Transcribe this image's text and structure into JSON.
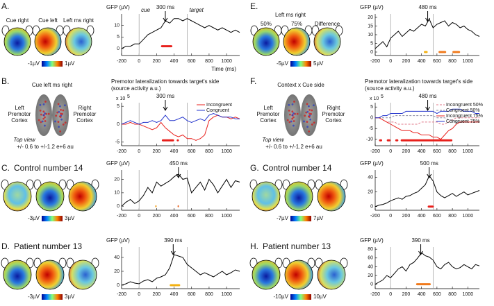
{
  "panels": [
    {
      "letter": "A.",
      "maps": [
        "Cue right",
        "Cue left",
        "Left ms right"
      ],
      "colorbar": [
        "-1µV",
        "1µV"
      ]
    },
    {
      "letter": "B.",
      "heading": "Cue left ms right",
      "brain_left": [
        "Left",
        "Premotor",
        "Cortex"
      ],
      "brain_right": [
        "Right",
        "Premotor",
        "Cortex"
      ],
      "view": "Top view",
      "scale": "+/- 0.6 to +/-1.2 e+6 au"
    },
    {
      "letter": "C.",
      "heading": "Control number 14",
      "colorbar": [
        "-3µV",
        "3µV"
      ]
    },
    {
      "letter": "D.",
      "heading": "Patient number 13",
      "colorbar": [
        "-3µV",
        "3µV"
      ]
    },
    {
      "letter": "E.",
      "heading": "Left ms right",
      "maps": [
        "50%",
        "75%",
        "Difference"
      ],
      "colorbar": [
        "-5µV",
        "5µV"
      ]
    },
    {
      "letter": "F.",
      "heading": "Context x Cue side",
      "brain_left": [
        "Left",
        "Premotor",
        "Cortex"
      ],
      "brain_right": [
        "Right",
        "Premotor",
        "Cortex"
      ],
      "view": "Top view",
      "scale": "+/- 0.6 to +/-1.2 e+6 au"
    },
    {
      "letter": "G.",
      "heading": "Control number 14",
      "colorbar": [
        "-7µV",
        "7µV"
      ]
    },
    {
      "letter": "H.",
      "heading": "Patient number 13",
      "colorbar": [
        "-10µV",
        "10µV"
      ]
    }
  ],
  "chart_data": [
    {
      "type": "line",
      "title": "GFP (µV)",
      "xlabel": "Time (ms)",
      "x": [
        -200,
        -150,
        -100,
        -50,
        0,
        50,
        100,
        150,
        200,
        250,
        300,
        350,
        400,
        450,
        500,
        550,
        600,
        650,
        700,
        750,
        800,
        850,
        900,
        950,
        1000,
        1050,
        1100,
        1150
      ],
      "series": [
        {
          "color": "#000000",
          "values": [
            0,
            1,
            1,
            2,
            2,
            4,
            6,
            7,
            8,
            9,
            12,
            11,
            13,
            13,
            12,
            13,
            12,
            11,
            10,
            9,
            10,
            9,
            8,
            9,
            8,
            7,
            8,
            7
          ]
        }
      ],
      "xlim": [
        -200,
        1150
      ],
      "xticks": [
        -200,
        0,
        200,
        400,
        600,
        800,
        1000
      ],
      "ylim": [
        -3,
        15
      ],
      "yticks": [
        0,
        5,
        10
      ],
      "events": [
        {
          "x": 0,
          "label": "cue"
        },
        {
          "x": 550,
          "label": "target"
        }
      ],
      "annotation": {
        "x": 300,
        "label": "300 ms"
      },
      "sig_y": 1,
      "sig_bars": [
        {
          "color": "#e8201c",
          "from": 250,
          "to": 380
        }
      ]
    },
    {
      "type": "line",
      "title": "Premotor lateralization towards target's side",
      "subtitle": "(source activity a.u.)",
      "y_scale_label": "x 10",
      "y_scale_exponent": "5",
      "x": [
        -200,
        -150,
        -100,
        -50,
        0,
        50,
        100,
        150,
        200,
        250,
        300,
        350,
        400,
        450,
        500,
        550,
        600,
        650,
        700,
        750,
        800,
        850,
        900,
        950,
        1000,
        1050,
        1100,
        1150
      ],
      "series": [
        {
          "name": "Incongruent",
          "color": "#e8201c",
          "values": [
            0,
            0,
            0.5,
            0,
            0,
            -0.5,
            -1,
            -1.5,
            -1,
            0.5,
            -1,
            -2,
            -3,
            -3.5,
            -3,
            -4,
            -4,
            -4.5,
            -4,
            -3,
            1,
            2,
            2.5,
            2,
            2,
            1.5,
            2,
            1.5
          ]
        },
        {
          "name": "Congruent",
          "color": "#2233cc",
          "values": [
            0,
            0.5,
            1,
            0.5,
            0,
            0.5,
            0.5,
            1,
            0.5,
            1,
            2.5,
            1,
            1,
            1.5,
            2,
            1,
            0.5,
            1,
            1.5,
            1,
            2.5,
            3,
            2.5,
            2,
            2,
            2,
            1.5,
            1.5
          ]
        }
      ],
      "legend": "upper right",
      "xlim": [
        -200,
        1150
      ],
      "xticks": [
        -200,
        0,
        200,
        400,
        600,
        800,
        1000
      ],
      "ylim": [
        -6,
        6
      ],
      "yticks": [
        5,
        0,
        -5
      ],
      "events": [
        {
          "x": 0
        },
        {
          "x": 550
        }
      ],
      "annotation": {
        "x": 300,
        "label": "300 ms"
      },
      "sig_y": -4.5,
      "sig_bars": [
        {
          "color": "#e8201c",
          "from": 260,
          "to": 400
        },
        {
          "color": "#e8201c",
          "from": 430,
          "to": 455
        }
      ]
    },
    {
      "type": "line",
      "title": "GFP (µV)",
      "x": [
        -200,
        -150,
        -100,
        -50,
        0,
        50,
        100,
        150,
        200,
        250,
        300,
        350,
        400,
        450,
        500,
        550,
        600,
        650,
        700,
        750,
        800,
        850,
        900,
        950,
        1000,
        1050,
        1100,
        1150
      ],
      "series": [
        {
          "color": "#000000",
          "values": [
            0,
            3,
            5,
            2,
            4,
            8,
            14,
            10,
            18,
            15,
            17,
            19,
            22,
            24,
            20,
            21,
            10,
            14,
            18,
            12,
            20,
            16,
            10,
            15,
            20,
            14,
            19,
            18
          ]
        }
      ],
      "xlim": [
        -200,
        1150
      ],
      "xticks": [
        -200,
        0,
        200,
        400,
        600,
        800,
        1000
      ],
      "ylim": [
        -3,
        27
      ],
      "yticks": [
        0,
        10,
        20
      ],
      "events": [
        {
          "x": 0
        },
        {
          "x": 550
        }
      ],
      "annotation": {
        "x": 450,
        "label": "450 ms"
      },
      "sig_y": 0,
      "sig_bars": [
        {
          "color": "#f39c12",
          "from": 185,
          "to": 200
        },
        {
          "color": "#e8601c",
          "from": 440,
          "to": 455
        }
      ]
    },
    {
      "type": "line",
      "title": "GFP (µV)",
      "x": [
        -200,
        -150,
        -100,
        -50,
        0,
        50,
        100,
        150,
        200,
        250,
        300,
        350,
        400,
        450,
        500,
        550,
        600,
        650,
        700,
        750,
        800,
        850,
        900,
        950,
        1000,
        1050,
        1100,
        1150
      ],
      "series": [
        {
          "color": "#000000",
          "values": [
            0,
            2,
            5,
            3,
            2,
            6,
            8,
            5,
            10,
            12,
            15,
            25,
            44,
            42,
            40,
            30,
            25,
            20,
            15,
            18,
            15,
            12,
            16,
            20,
            15,
            18,
            22,
            20
          ]
        }
      ],
      "xlim": [
        -200,
        1150
      ],
      "xticks": [
        -200,
        0,
        200,
        400,
        600,
        800,
        1000
      ],
      "ylim": [
        -5,
        55
      ],
      "yticks": [
        0,
        20,
        40
      ],
      "events": [
        {
          "x": 0
        },
        {
          "x": 550
        }
      ],
      "annotation": {
        "x": 390,
        "label": "390 ms"
      },
      "sig_y": 0,
      "sig_bars": [
        {
          "color": "#f3b112",
          "from": 350,
          "to": 470
        }
      ]
    },
    {
      "type": "line",
      "title": "GFP (µV)",
      "x": [
        -200,
        -150,
        -100,
        -50,
        0,
        50,
        100,
        150,
        200,
        250,
        300,
        350,
        400,
        450,
        500,
        550,
        600,
        650,
        700,
        750,
        800,
        850,
        900,
        950,
        1000,
        1050,
        1100,
        1150
      ],
      "series": [
        {
          "color": "#000000",
          "values": [
            2,
            4,
            6,
            3,
            8,
            10,
            12,
            9,
            11,
            13,
            12,
            14,
            16,
            15,
            19,
            14,
            16,
            17,
            18,
            15,
            17,
            16,
            14,
            15,
            13,
            12,
            10,
            9
          ]
        }
      ],
      "xlim": [
        -200,
        1150
      ],
      "xticks": [
        -200,
        0,
        200,
        400,
        600,
        800,
        1000
      ],
      "ylim": [
        -2,
        22
      ],
      "yticks": [
        0,
        5,
        10,
        15,
        20
      ],
      "events": [
        {
          "x": 0
        },
        {
          "x": 550
        }
      ],
      "annotation": {
        "x": 480,
        "label": "480 ms"
      },
      "sig_y": 0,
      "sig_bars": [
        {
          "color": "#f3b112",
          "from": 430,
          "to": 480
        },
        {
          "color": "#f07a1c",
          "from": 620,
          "to": 720
        },
        {
          "color": "#f07a1c",
          "from": 800,
          "to": 900
        }
      ]
    },
    {
      "type": "line",
      "title": "Premotor lateralization towards target's side",
      "subtitle": "(source activity a.u.)",
      "y_scale_label": "x 10",
      "y_scale_exponent": "5",
      "x": [
        -200,
        -150,
        -100,
        -50,
        0,
        50,
        100,
        150,
        200,
        250,
        300,
        350,
        400,
        450,
        500,
        550,
        600,
        650,
        700,
        750,
        800,
        850,
        900,
        950,
        1000,
        1050,
        1100,
        1150
      ],
      "series": [
        {
          "name": "Incongruent 50%",
          "color": "#e07a8a",
          "dash": true,
          "values": [
            0,
            0,
            -1,
            -2,
            -2,
            -2,
            -3,
            -3,
            -3,
            -3,
            -3,
            -3,
            -2,
            -2,
            -2,
            -2,
            -2,
            -3,
            -3,
            -2,
            -1,
            0,
            0,
            0,
            0,
            0,
            0,
            0
          ]
        },
        {
          "name": "Congruent 50%",
          "color": "#8a8aa0",
          "dash": true,
          "values": [
            0,
            0,
            0,
            0,
            0,
            1,
            1,
            1,
            1,
            1,
            1,
            1,
            1,
            1,
            1,
            1,
            0,
            0,
            0,
            -1,
            -1,
            -2,
            -2,
            -2,
            -2,
            -2,
            -2,
            -2
          ]
        },
        {
          "name": "Incongruent 75%",
          "color": "#e8201c",
          "dash": false,
          "values": [
            0,
            0,
            -1,
            -2,
            -3,
            -4,
            -5,
            -6,
            -6,
            -6,
            -7,
            -7,
            -8,
            -8,
            -8,
            -9,
            -9,
            -10,
            -8,
            -6,
            -5,
            -3,
            -2,
            -2,
            -2,
            -2,
            -2,
            -2
          ]
        },
        {
          "name": "Congruent 75%",
          "color": "#2233cc",
          "dash": false,
          "values": [
            0,
            0,
            1,
            1,
            2,
            2,
            2,
            2,
            3,
            3,
            3,
            3,
            3,
            3,
            3,
            3,
            2,
            3,
            3,
            3,
            4,
            4,
            4,
            3,
            3,
            3,
            2,
            2
          ]
        }
      ],
      "legend": "upper right",
      "xlim": [
        -200,
        1150
      ],
      "xticks": [
        -200,
        0,
        200,
        400,
        600,
        800,
        1000
      ],
      "ylim": [
        -13,
        7
      ],
      "yticks": [
        5,
        0,
        -5,
        -10
      ],
      "events": [
        {
          "x": 0
        },
        {
          "x": 550
        }
      ],
      "annotation": {
        "x": 480,
        "label": "480 ms"
      },
      "sig_y": -10.5,
      "sig_bars": [
        {
          "color": "#e8201c",
          "from": -150,
          "to": -110
        },
        {
          "color": "#e8201c",
          "from": -50,
          "to": 0
        },
        {
          "color": "#e8201c",
          "from": 60,
          "to": 100
        },
        {
          "color": "#e8201c",
          "from": 130,
          "to": 800
        }
      ]
    },
    {
      "type": "line",
      "title": "GFP (µV)",
      "x": [
        -200,
        -150,
        -100,
        -50,
        0,
        50,
        100,
        150,
        200,
        250,
        300,
        350,
        400,
        450,
        500,
        550,
        600,
        650,
        700,
        750,
        800,
        850,
        900,
        950,
        1000,
        1050,
        1100,
        1150
      ],
      "series": [
        {
          "color": "#000000",
          "values": [
            0,
            2,
            3,
            5,
            8,
            10,
            12,
            10,
            14,
            15,
            18,
            20,
            25,
            30,
            42,
            35,
            20,
            15,
            12,
            15,
            18,
            14,
            17,
            20,
            16,
            18,
            20,
            22
          ]
        }
      ],
      "xlim": [
        -200,
        1150
      ],
      "xticks": [
        -200,
        0,
        200,
        400,
        600,
        800,
        1000
      ],
      "ylim": [
        -5,
        50
      ],
      "yticks": [
        0,
        20,
        40
      ],
      "events": [
        {
          "x": 0
        },
        {
          "x": 550
        }
      ],
      "annotation": {
        "x": 500,
        "label": "500 ms"
      },
      "sig_y": 0,
      "sig_bars": [
        {
          "color": "#e8201c",
          "from": 480,
          "to": 560
        }
      ]
    },
    {
      "type": "line",
      "title": "GFP (µV)",
      "x": [
        -200,
        -150,
        -100,
        -50,
        0,
        50,
        100,
        150,
        200,
        250,
        300,
        350,
        400,
        450,
        500,
        550,
        600,
        650,
        700,
        750,
        800,
        850,
        900,
        950,
        1000,
        1050,
        1100,
        1150
      ],
      "series": [
        {
          "color": "#000000",
          "values": [
            0,
            5,
            10,
            20,
            15,
            25,
            35,
            40,
            30,
            45,
            50,
            60,
            72,
            65,
            62,
            55,
            40,
            35,
            45,
            50,
            40,
            35,
            38,
            45,
            40,
            35,
            45,
            42
          ]
        }
      ],
      "xlim": [
        -200,
        1150
      ],
      "xticks": [
        -200,
        0,
        200,
        400,
        600,
        800,
        1000
      ],
      "ylim": [
        -10,
        85
      ],
      "yticks": [
        0,
        20,
        40,
        60,
        80
      ],
      "events": [
        {
          "x": 0
        },
        {
          "x": 550
        }
      ],
      "annotation": {
        "x": 390,
        "label": "390 ms"
      },
      "sig_y": 0,
      "sig_bars": [
        {
          "color": "#f07a1c",
          "from": 330,
          "to": 520
        }
      ]
    }
  ]
}
